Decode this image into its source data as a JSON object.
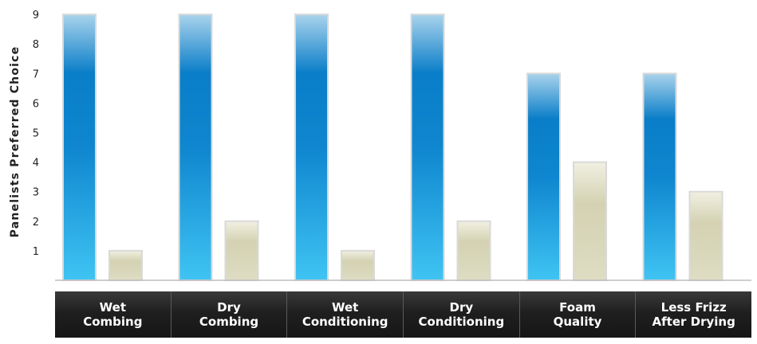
{
  "chart_data": {
    "type": "bar",
    "ylabel": "Panelists Preferred Choice",
    "yticks": [
      1,
      2,
      3,
      4,
      5,
      6,
      7,
      8,
      9
    ],
    "ylim": [
      0,
      9
    ],
    "categories": [
      [
        "Wet",
        "Combing"
      ],
      [
        "Dry",
        "Combing"
      ],
      [
        "Wet",
        "Conditioning"
      ],
      [
        "Dry",
        "Conditioning"
      ],
      [
        "Foam",
        "Quality"
      ],
      [
        "Less Frizz",
        "After Drying"
      ]
    ],
    "series": [
      {
        "values": [
          9,
          9,
          9,
          9,
          7,
          7
        ],
        "color": "#1a8fd6"
      },
      {
        "values": [
          1,
          2,
          1,
          2,
          4,
          3
        ],
        "color": "#d8d6b8"
      }
    ]
  }
}
